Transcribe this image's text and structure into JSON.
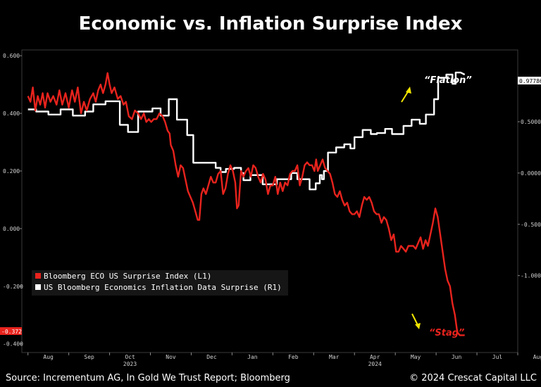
{
  "title": "Economic vs. Inflation Surprise Index",
  "footer": {
    "source": "Source: Incrementum AG, In Gold We Trust Report; Bloomberg",
    "copyright": "© 2024 Crescat Capital LLC"
  },
  "annotations": {
    "flation": "“Flation”",
    "stag": "“Stag”",
    "arrow_color": "#f2e600"
  },
  "badges": {
    "left_last": "-0.372",
    "right_last": "0.97786"
  },
  "chart_data": {
    "type": "line",
    "title": "Economic vs. Inflation Surprise Index",
    "x_axis": {
      "ticks": [
        "Aug",
        "Sep",
        "Oct",
        "Nov",
        "Dec",
        "Jan",
        "Feb",
        "Mar",
        "Apr",
        "May",
        "Jun",
        "Jul",
        "Aug"
      ],
      "year_labels": [
        {
          "label": "2023",
          "at_tick": "Oct"
        },
        {
          "label": "2024",
          "at_tick": "Apr"
        }
      ],
      "range_months": [
        6.85,
        19.0
      ]
    },
    "y_left": {
      "ticks": [
        "0.600",
        "0.400",
        "0.200",
        "0.000",
        "-0.200",
        "-0.400"
      ],
      "range": [
        -0.43,
        0.62
      ]
    },
    "y_right": {
      "ticks": [
        "0.50000",
        "0.00000",
        "-0.50000",
        "-1.00000"
      ],
      "range": [
        -1.75,
        1.2
      ]
    },
    "grid": false,
    "legend_position": "bottom-left",
    "series": [
      {
        "name": "Bloomberg ECO US Surprise Index (L1)",
        "axis": "left",
        "color": "#e8231d",
        "points": [
          [
            7.0,
            0.46
          ],
          [
            7.06,
            0.44
          ],
          [
            7.12,
            0.49
          ],
          [
            7.18,
            0.41
          ],
          [
            7.24,
            0.46
          ],
          [
            7.3,
            0.43
          ],
          [
            7.36,
            0.47
          ],
          [
            7.42,
            0.42
          ],
          [
            7.48,
            0.47
          ],
          [
            7.55,
            0.44
          ],
          [
            7.62,
            0.46
          ],
          [
            7.7,
            0.43
          ],
          [
            7.77,
            0.48
          ],
          [
            7.84,
            0.43
          ],
          [
            7.92,
            0.47
          ],
          [
            8.0,
            0.42
          ],
          [
            8.08,
            0.48
          ],
          [
            8.15,
            0.44
          ],
          [
            8.22,
            0.49
          ],
          [
            8.3,
            0.4
          ],
          [
            8.37,
            0.44
          ],
          [
            8.44,
            0.41
          ],
          [
            8.52,
            0.45
          ],
          [
            8.6,
            0.47
          ],
          [
            8.66,
            0.44
          ],
          [
            8.72,
            0.48
          ],
          [
            8.78,
            0.5
          ],
          [
            8.84,
            0.47
          ],
          [
            8.9,
            0.5
          ],
          [
            8.95,
            0.54
          ],
          [
            9.0,
            0.5
          ],
          [
            9.05,
            0.47
          ],
          [
            9.12,
            0.49
          ],
          [
            9.2,
            0.45
          ],
          [
            9.27,
            0.46
          ],
          [
            9.34,
            0.43
          ],
          [
            9.4,
            0.44
          ],
          [
            9.47,
            0.39
          ],
          [
            9.55,
            0.38
          ],
          [
            9.62,
            0.41
          ],
          [
            9.7,
            0.4
          ],
          [
            9.77,
            0.38
          ],
          [
            9.84,
            0.4
          ],
          [
            9.9,
            0.37
          ],
          [
            9.96,
            0.38
          ],
          [
            10.02,
            0.37
          ],
          [
            10.08,
            0.38
          ],
          [
            10.15,
            0.38
          ],
          [
            10.22,
            0.4
          ],
          [
            10.3,
            0.39
          ],
          [
            10.36,
            0.37
          ],
          [
            10.42,
            0.34
          ],
          [
            10.47,
            0.33
          ],
          [
            10.5,
            0.29
          ],
          [
            10.56,
            0.27
          ],
          [
            10.62,
            0.22
          ],
          [
            10.68,
            0.18
          ],
          [
            10.74,
            0.22
          ],
          [
            10.8,
            0.21
          ],
          [
            10.86,
            0.17
          ],
          [
            10.92,
            0.13
          ],
          [
            10.98,
            0.11
          ],
          [
            11.04,
            0.09
          ],
          [
            11.1,
            0.06
          ],
          [
            11.16,
            0.03
          ],
          [
            11.2,
            0.03
          ],
          [
            11.25,
            0.12
          ],
          [
            11.3,
            0.14
          ],
          [
            11.36,
            0.12
          ],
          [
            11.42,
            0.15
          ],
          [
            11.48,
            0.18
          ],
          [
            11.54,
            0.16
          ],
          [
            11.6,
            0.16
          ],
          [
            11.66,
            0.19
          ],
          [
            11.72,
            0.2
          ],
          [
            11.78,
            0.12
          ],
          [
            11.84,
            0.14
          ],
          [
            11.9,
            0.19
          ],
          [
            11.96,
            0.22
          ],
          [
            12.02,
            0.2
          ],
          [
            12.08,
            0.16
          ],
          [
            12.12,
            0.07
          ],
          [
            12.16,
            0.08
          ],
          [
            12.22,
            0.2
          ],
          [
            12.28,
            0.18
          ],
          [
            12.34,
            0.2
          ],
          [
            12.4,
            0.21
          ],
          [
            12.46,
            0.18
          ],
          [
            12.52,
            0.22
          ],
          [
            12.58,
            0.21
          ],
          [
            12.64,
            0.18
          ],
          [
            12.7,
            0.16
          ],
          [
            12.76,
            0.19
          ],
          [
            12.82,
            0.17
          ],
          [
            12.88,
            0.12
          ],
          [
            12.94,
            0.15
          ],
          [
            13.0,
            0.15
          ],
          [
            13.06,
            0.18
          ],
          [
            13.12,
            0.12
          ],
          [
            13.18,
            0.16
          ],
          [
            13.24,
            0.13
          ],
          [
            13.3,
            0.16
          ],
          [
            13.36,
            0.15
          ],
          [
            13.42,
            0.19
          ],
          [
            13.48,
            0.2
          ],
          [
            13.54,
            0.2
          ],
          [
            13.6,
            0.22
          ],
          [
            13.66,
            0.15
          ],
          [
            13.72,
            0.18
          ],
          [
            13.78,
            0.22
          ],
          [
            13.84,
            0.23
          ],
          [
            13.9,
            0.22
          ],
          [
            13.96,
            0.22
          ],
          [
            14.02,
            0.2
          ],
          [
            14.06,
            0.24
          ],
          [
            14.1,
            0.2
          ],
          [
            14.16,
            0.22
          ],
          [
            14.22,
            0.24
          ],
          [
            14.28,
            0.21
          ],
          [
            14.34,
            0.2
          ],
          [
            14.4,
            0.19
          ],
          [
            14.46,
            0.16
          ],
          [
            14.52,
            0.12
          ],
          [
            14.58,
            0.11
          ],
          [
            14.64,
            0.13
          ],
          [
            14.7,
            0.1
          ],
          [
            14.76,
            0.08
          ],
          [
            14.82,
            0.09
          ],
          [
            14.88,
            0.06
          ],
          [
            14.94,
            0.05
          ],
          [
            15.0,
            0.05
          ],
          [
            15.06,
            0.06
          ],
          [
            15.12,
            0.04
          ],
          [
            15.18,
            0.08
          ],
          [
            15.24,
            0.11
          ],
          [
            15.3,
            0.1
          ],
          [
            15.36,
            0.11
          ],
          [
            15.42,
            0.09
          ],
          [
            15.48,
            0.06
          ],
          [
            15.54,
            0.05
          ],
          [
            15.6,
            0.05
          ],
          [
            15.66,
            0.02
          ],
          [
            15.72,
            0.04
          ],
          [
            15.78,
            0.03
          ],
          [
            15.84,
            0.0
          ],
          [
            15.9,
            -0.04
          ],
          [
            15.96,
            -0.02
          ],
          [
            16.02,
            -0.08
          ],
          [
            16.08,
            -0.08
          ],
          [
            16.14,
            -0.06
          ],
          [
            16.2,
            -0.07
          ],
          [
            16.26,
            -0.08
          ],
          [
            16.32,
            -0.06
          ],
          [
            16.38,
            -0.06
          ],
          [
            16.44,
            -0.06
          ],
          [
            16.5,
            -0.07
          ],
          [
            16.56,
            -0.05
          ],
          [
            16.62,
            -0.03
          ],
          [
            16.68,
            -0.07
          ],
          [
            16.74,
            -0.04
          ],
          [
            16.8,
            -0.06
          ],
          [
            16.86,
            -0.02
          ],
          [
            16.92,
            0.02
          ],
          [
            16.98,
            0.07
          ],
          [
            17.04,
            0.04
          ],
          [
            17.1,
            -0.02
          ],
          [
            17.16,
            -0.08
          ],
          [
            17.22,
            -0.14
          ],
          [
            17.28,
            -0.18
          ],
          [
            17.34,
            -0.2
          ],
          [
            17.4,
            -0.26
          ],
          [
            17.46,
            -0.3
          ],
          [
            17.52,
            -0.36
          ],
          [
            17.58,
            -0.37
          ],
          [
            17.64,
            -0.37
          ],
          [
            17.7,
            -0.37
          ]
        ]
      },
      {
        "name": "US Bloomberg Economics Inflation Data Surprise (R1)",
        "axis": "right",
        "color": "#ffffff",
        "points": [
          [
            7.0,
            0.62
          ],
          [
            7.2,
            0.62
          ],
          [
            7.2,
            0.6
          ],
          [
            7.5,
            0.6
          ],
          [
            7.5,
            0.57
          ],
          [
            7.8,
            0.57
          ],
          [
            7.8,
            0.62
          ],
          [
            8.1,
            0.62
          ],
          [
            8.1,
            0.56
          ],
          [
            8.4,
            0.56
          ],
          [
            8.4,
            0.6
          ],
          [
            8.6,
            0.6
          ],
          [
            8.6,
            0.67
          ],
          [
            8.9,
            0.67
          ],
          [
            8.9,
            0.7
          ],
          [
            9.25,
            0.7
          ],
          [
            9.25,
            0.47
          ],
          [
            9.45,
            0.47
          ],
          [
            9.45,
            0.4
          ],
          [
            9.7,
            0.4
          ],
          [
            9.7,
            0.6
          ],
          [
            10.05,
            0.6
          ],
          [
            10.05,
            0.63
          ],
          [
            10.25,
            0.63
          ],
          [
            10.25,
            0.56
          ],
          [
            10.45,
            0.56
          ],
          [
            10.45,
            0.72
          ],
          [
            10.65,
            0.72
          ],
          [
            10.65,
            0.52
          ],
          [
            10.9,
            0.52
          ],
          [
            10.9,
            0.37
          ],
          [
            11.05,
            0.37
          ],
          [
            11.05,
            0.1
          ],
          [
            11.6,
            0.1
          ],
          [
            11.6,
            0.05
          ],
          [
            11.72,
            0.05
          ],
          [
            11.72,
            0.01
          ],
          [
            11.85,
            0.01
          ],
          [
            11.85,
            0.04
          ],
          [
            12.05,
            0.04
          ],
          [
            12.05,
            0.05
          ],
          [
            12.22,
            0.05
          ],
          [
            12.22,
            0.0
          ],
          [
            12.28,
            0.0
          ],
          [
            12.28,
            -0.07
          ],
          [
            12.45,
            -0.07
          ],
          [
            12.45,
            -0.02
          ],
          [
            12.6,
            -0.02
          ],
          [
            12.6,
            -0.02
          ],
          [
            12.75,
            -0.02
          ],
          [
            12.75,
            -0.11
          ],
          [
            13.1,
            -0.11
          ],
          [
            13.1,
            -0.06
          ],
          [
            13.45,
            -0.06
          ],
          [
            13.45,
            0.0
          ],
          [
            13.6,
            0.0
          ],
          [
            13.6,
            -0.06
          ],
          [
            13.75,
            -0.06
          ],
          [
            13.75,
            -0.06
          ],
          [
            13.9,
            -0.06
          ],
          [
            13.9,
            -0.16
          ],
          [
            14.05,
            -0.16
          ],
          [
            14.05,
            -0.1
          ],
          [
            14.15,
            -0.1
          ],
          [
            14.15,
            -0.02
          ],
          [
            14.2,
            -0.02
          ],
          [
            14.2,
            -0.06
          ],
          [
            14.25,
            -0.06
          ],
          [
            14.25,
            0.02
          ],
          [
            14.35,
            0.02
          ],
          [
            14.35,
            0.2
          ],
          [
            14.55,
            0.2
          ],
          [
            14.55,
            0.25
          ],
          [
            14.75,
            0.25
          ],
          [
            14.75,
            0.28
          ],
          [
            14.9,
            0.28
          ],
          [
            14.9,
            0.24
          ],
          [
            15.0,
            0.24
          ],
          [
            15.0,
            0.35
          ],
          [
            15.2,
            0.35
          ],
          [
            15.2,
            0.42
          ],
          [
            15.4,
            0.42
          ],
          [
            15.4,
            0.38
          ],
          [
            15.55,
            0.38
          ],
          [
            15.55,
            0.39
          ],
          [
            15.75,
            0.39
          ],
          [
            15.75,
            0.43
          ],
          [
            15.92,
            0.43
          ],
          [
            15.92,
            0.38
          ],
          [
            16.2,
            0.38
          ],
          [
            16.2,
            0.46
          ],
          [
            16.4,
            0.46
          ],
          [
            16.4,
            0.52
          ],
          [
            16.6,
            0.52
          ],
          [
            16.6,
            0.48
          ],
          [
            16.75,
            0.48
          ],
          [
            16.75,
            0.57
          ],
          [
            16.95,
            0.57
          ],
          [
            16.95,
            0.72
          ],
          [
            17.05,
            0.72
          ],
          [
            17.05,
            0.93
          ],
          [
            17.25,
            0.93
          ],
          [
            17.25,
            0.96
          ],
          [
            17.4,
            0.96
          ],
          [
            17.4,
            0.87
          ],
          [
            17.48,
            0.87
          ],
          [
            17.48,
            0.98
          ],
          [
            17.6,
            0.98
          ],
          [
            17.7,
            0.96
          ]
        ]
      }
    ]
  }
}
